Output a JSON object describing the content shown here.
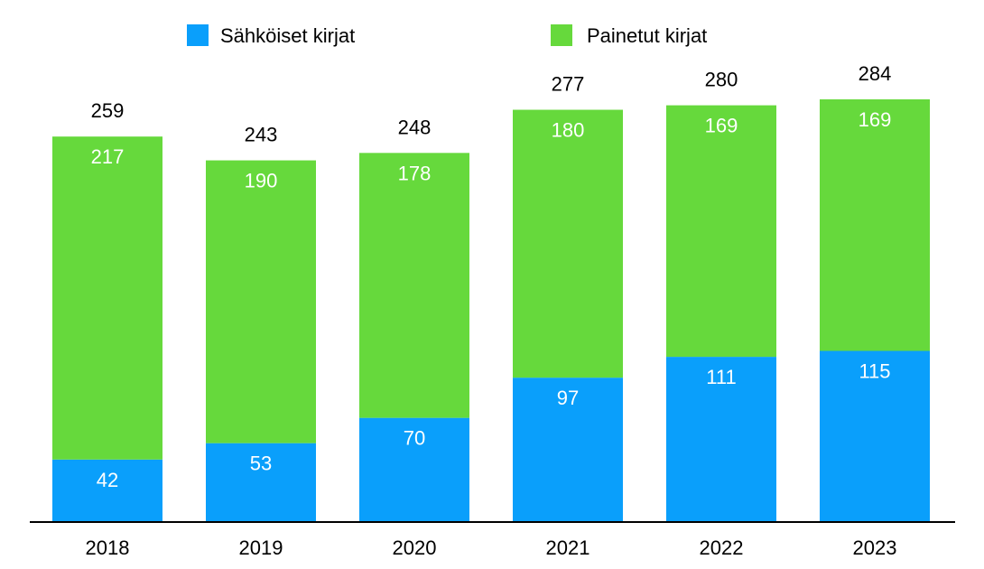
{
  "chart_data": {
    "type": "bar",
    "stacked": true,
    "categories": [
      "2018",
      "2019",
      "2020",
      "2021",
      "2022",
      "2023"
    ],
    "series": [
      {
        "name": "Sähköiset kirjat",
        "color": "#0a9ffb",
        "values": [
          42,
          53,
          70,
          97,
          111,
          115
        ]
      },
      {
        "name": "Painetut kirjat",
        "color": "#66d93c",
        "values": [
          217,
          190,
          178,
          180,
          169,
          169
        ]
      }
    ],
    "totals": [
      259,
      243,
      248,
      277,
      280,
      284
    ],
    "ylim": [
      0,
      284
    ],
    "grid": false,
    "legend_position": "top"
  }
}
